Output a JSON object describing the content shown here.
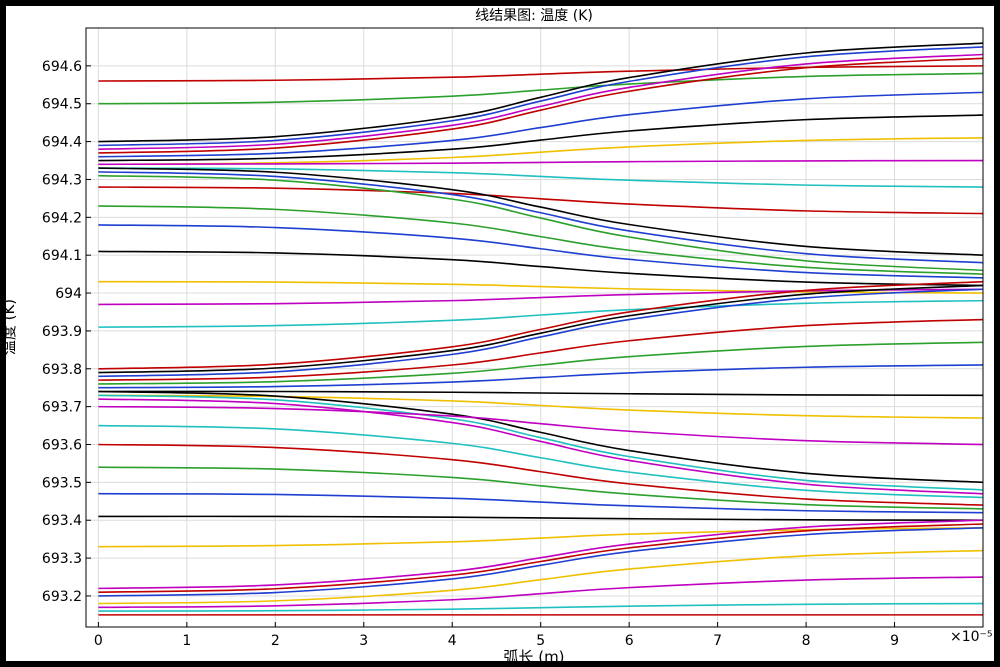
{
  "chart_data": {
    "type": "line",
    "title": "线结果图: 温度 (K)",
    "xlabel": "弧长 (m)",
    "ylabel": "温度 (K)",
    "x_multiplier": "×10⁻⁵",
    "x": [
      0,
      2,
      4,
      5,
      6,
      8,
      10
    ],
    "xlim": [
      -0.14,
      10.0
    ],
    "xticks": [
      0,
      1,
      2,
      3,
      4,
      5,
      6,
      7,
      8,
      9
    ],
    "ylim": [
      693.118,
      694.7
    ],
    "yticks": [
      693.2,
      693.3,
      693.4,
      693.5,
      693.6,
      693.7,
      693.8,
      693.9,
      694,
      694.1,
      694.2,
      694.3,
      694.4,
      694.5,
      694.6
    ],
    "grid": true,
    "series": [
      {
        "color": "#c00000",
        "values": [
          694.56,
          694.562,
          694.57,
          694.578,
          694.586,
          694.596,
          694.6
        ]
      },
      {
        "color": "#2ca02c",
        "values": [
          694.5,
          694.504,
          694.52,
          694.536,
          694.552,
          694.572,
          694.58
        ]
      },
      {
        "color": "#000000",
        "values": [
          694.4,
          694.413,
          694.465,
          694.517,
          694.569,
          694.634,
          694.66
        ]
      },
      {
        "color": "#1f3fd0",
        "values": [
          694.39,
          694.403,
          694.455,
          694.507,
          694.559,
          694.624,
          694.65
        ]
      },
      {
        "color": "#c000c0",
        "values": [
          694.38,
          694.393,
          694.443,
          694.493,
          694.543,
          694.605,
          694.63
        ]
      },
      {
        "color": "#c00000",
        "values": [
          694.37,
          694.383,
          694.433,
          694.483,
          694.533,
          694.595,
          694.62
        ]
      },
      {
        "color": "#1f3fd0",
        "values": [
          694.36,
          694.369,
          694.403,
          694.437,
          694.471,
          694.513,
          694.53
        ]
      },
      {
        "color": "#000000",
        "values": [
          694.35,
          694.356,
          694.38,
          694.404,
          694.428,
          694.458,
          694.47
        ]
      },
      {
        "color": "#f0c000",
        "values": [
          694.34,
          694.344,
          694.358,
          694.372,
          694.386,
          694.403,
          694.41
        ]
      },
      {
        "color": "#c000c0",
        "values": [
          694.34,
          694.341,
          694.343,
          694.345,
          694.347,
          694.349,
          694.35
        ]
      },
      {
        "color": "#20c0c0",
        "values": [
          694.33,
          694.328,
          694.318,
          694.308,
          694.298,
          694.285,
          694.28
        ]
      },
      {
        "color": "#c00000",
        "values": [
          694.28,
          694.277,
          694.263,
          694.249,
          694.235,
          694.217,
          694.21
        ]
      },
      {
        "color": "#000000",
        "values": [
          694.33,
          694.319,
          694.273,
          694.227,
          694.181,
          694.123,
          694.1
        ]
      },
      {
        "color": "#1f3fd0",
        "values": [
          694.32,
          694.308,
          694.26,
          694.212,
          694.164,
          694.104,
          694.08
        ]
      },
      {
        "color": "#2ca02c",
        "values": [
          694.31,
          694.298,
          694.248,
          694.198,
          694.148,
          694.085,
          694.06
        ]
      },
      {
        "color": "#2ca02c",
        "values": [
          694.23,
          694.221,
          694.185,
          694.149,
          694.113,
          694.068,
          694.05
        ]
      },
      {
        "color": "#1f3fd0",
        "values": [
          694.18,
          694.173,
          694.145,
          694.117,
          694.089,
          694.054,
          694.04
        ]
      },
      {
        "color": "#000000",
        "values": [
          694.11,
          694.106,
          694.088,
          694.07,
          694.052,
          694.029,
          694.02
        ]
      },
      {
        "color": "#f0c000",
        "values": [
          694.03,
          694.029,
          694.023,
          694.017,
          694.011,
          694.003,
          694
        ]
      },
      {
        "color": "#c000c0",
        "values": [
          693.97,
          693.972,
          693.98,
          693.988,
          693.996,
          694.006,
          694.01
        ]
      },
      {
        "color": "#20c0c0",
        "values": [
          693.91,
          693.914,
          693.928,
          693.942,
          693.956,
          693.973,
          693.98
        ]
      },
      {
        "color": "#c00000",
        "values": [
          693.8,
          693.812,
          693.858,
          693.904,
          693.95,
          694.007,
          694.03
        ]
      },
      {
        "color": "#000000",
        "values": [
          693.79,
          693.802,
          693.848,
          693.894,
          693.94,
          693.997,
          694.02
        ]
      },
      {
        "color": "#1f3fd0",
        "values": [
          693.78,
          693.792,
          693.838,
          693.884,
          693.93,
          693.987,
          694.01
        ]
      },
      {
        "color": "#c00000",
        "values": [
          693.77,
          693.778,
          693.81,
          693.842,
          693.874,
          693.914,
          693.93
        ]
      },
      {
        "color": "#2ca02c",
        "values": [
          693.76,
          693.766,
          693.788,
          693.81,
          693.832,
          693.859,
          693.87
        ]
      },
      {
        "color": "#1f3fd0",
        "values": [
          693.75,
          693.753,
          693.765,
          693.777,
          693.789,
          693.804,
          693.81
        ]
      },
      {
        "color": "#000000",
        "values": [
          693.74,
          693.74,
          693.738,
          693.736,
          693.734,
          693.731,
          693.73
        ]
      },
      {
        "color": "#f0c000",
        "values": [
          693.73,
          693.727,
          693.715,
          693.703,
          693.691,
          693.676,
          693.67
        ]
      },
      {
        "color": "#000000",
        "values": [
          693.74,
          693.728,
          693.68,
          693.632,
          693.584,
          693.524,
          693.5
        ]
      },
      {
        "color": "#20c0c0",
        "values": [
          693.73,
          693.718,
          693.668,
          693.618,
          693.568,
          693.505,
          693.48
        ]
      },
      {
        "color": "#c000c0",
        "values": [
          693.72,
          693.708,
          693.658,
          693.608,
          693.558,
          693.495,
          693.47
        ]
      },
      {
        "color": "#c000c0",
        "values": [
          693.7,
          693.695,
          693.675,
          693.655,
          693.635,
          693.61,
          693.6
        ]
      },
      {
        "color": "#20c0c0",
        "values": [
          693.65,
          693.641,
          693.603,
          693.565,
          693.527,
          693.479,
          693.46
        ]
      },
      {
        "color": "#c00000",
        "values": [
          693.6,
          693.592,
          693.56,
          693.528,
          693.496,
          693.456,
          693.44
        ]
      },
      {
        "color": "#2ca02c",
        "values": [
          693.54,
          693.535,
          693.513,
          693.491,
          693.469,
          693.441,
          693.43
        ]
      },
      {
        "color": "#1f3fd0",
        "values": [
          693.47,
          693.468,
          693.458,
          693.448,
          693.438,
          693.425,
          693.42
        ]
      },
      {
        "color": "#000000",
        "values": [
          693.41,
          693.41,
          693.408,
          693.406,
          693.404,
          693.401,
          693.4
        ]
      },
      {
        "color": "#f0c000",
        "values": [
          693.33,
          693.333,
          693.343,
          693.353,
          693.363,
          693.375,
          693.38
        ]
      },
      {
        "color": "#c000c0",
        "values": [
          693.22,
          693.229,
          693.265,
          693.301,
          693.337,
          693.382,
          693.4
        ]
      },
      {
        "color": "#c00000",
        "values": [
          693.21,
          693.219,
          693.255,
          693.291,
          693.327,
          693.372,
          693.39
        ]
      },
      {
        "color": "#1f3fd0",
        "values": [
          693.2,
          693.209,
          693.245,
          693.281,
          693.317,
          693.362,
          693.38
        ]
      },
      {
        "color": "#f0c000",
        "values": [
          693.18,
          693.187,
          693.215,
          693.243,
          693.271,
          693.306,
          693.32
        ]
      },
      {
        "color": "#c000c0",
        "values": [
          693.17,
          693.174,
          693.19,
          693.206,
          693.222,
          693.242,
          693.25
        ]
      },
      {
        "color": "#20c0c0",
        "values": [
          693.16,
          693.161,
          693.165,
          693.169,
          693.173,
          693.178,
          693.18
        ]
      },
      {
        "color": "#c00000",
        "values": [
          693.15,
          693.15,
          693.15,
          693.15,
          693.15,
          693.15,
          693.15
        ]
      }
    ]
  }
}
